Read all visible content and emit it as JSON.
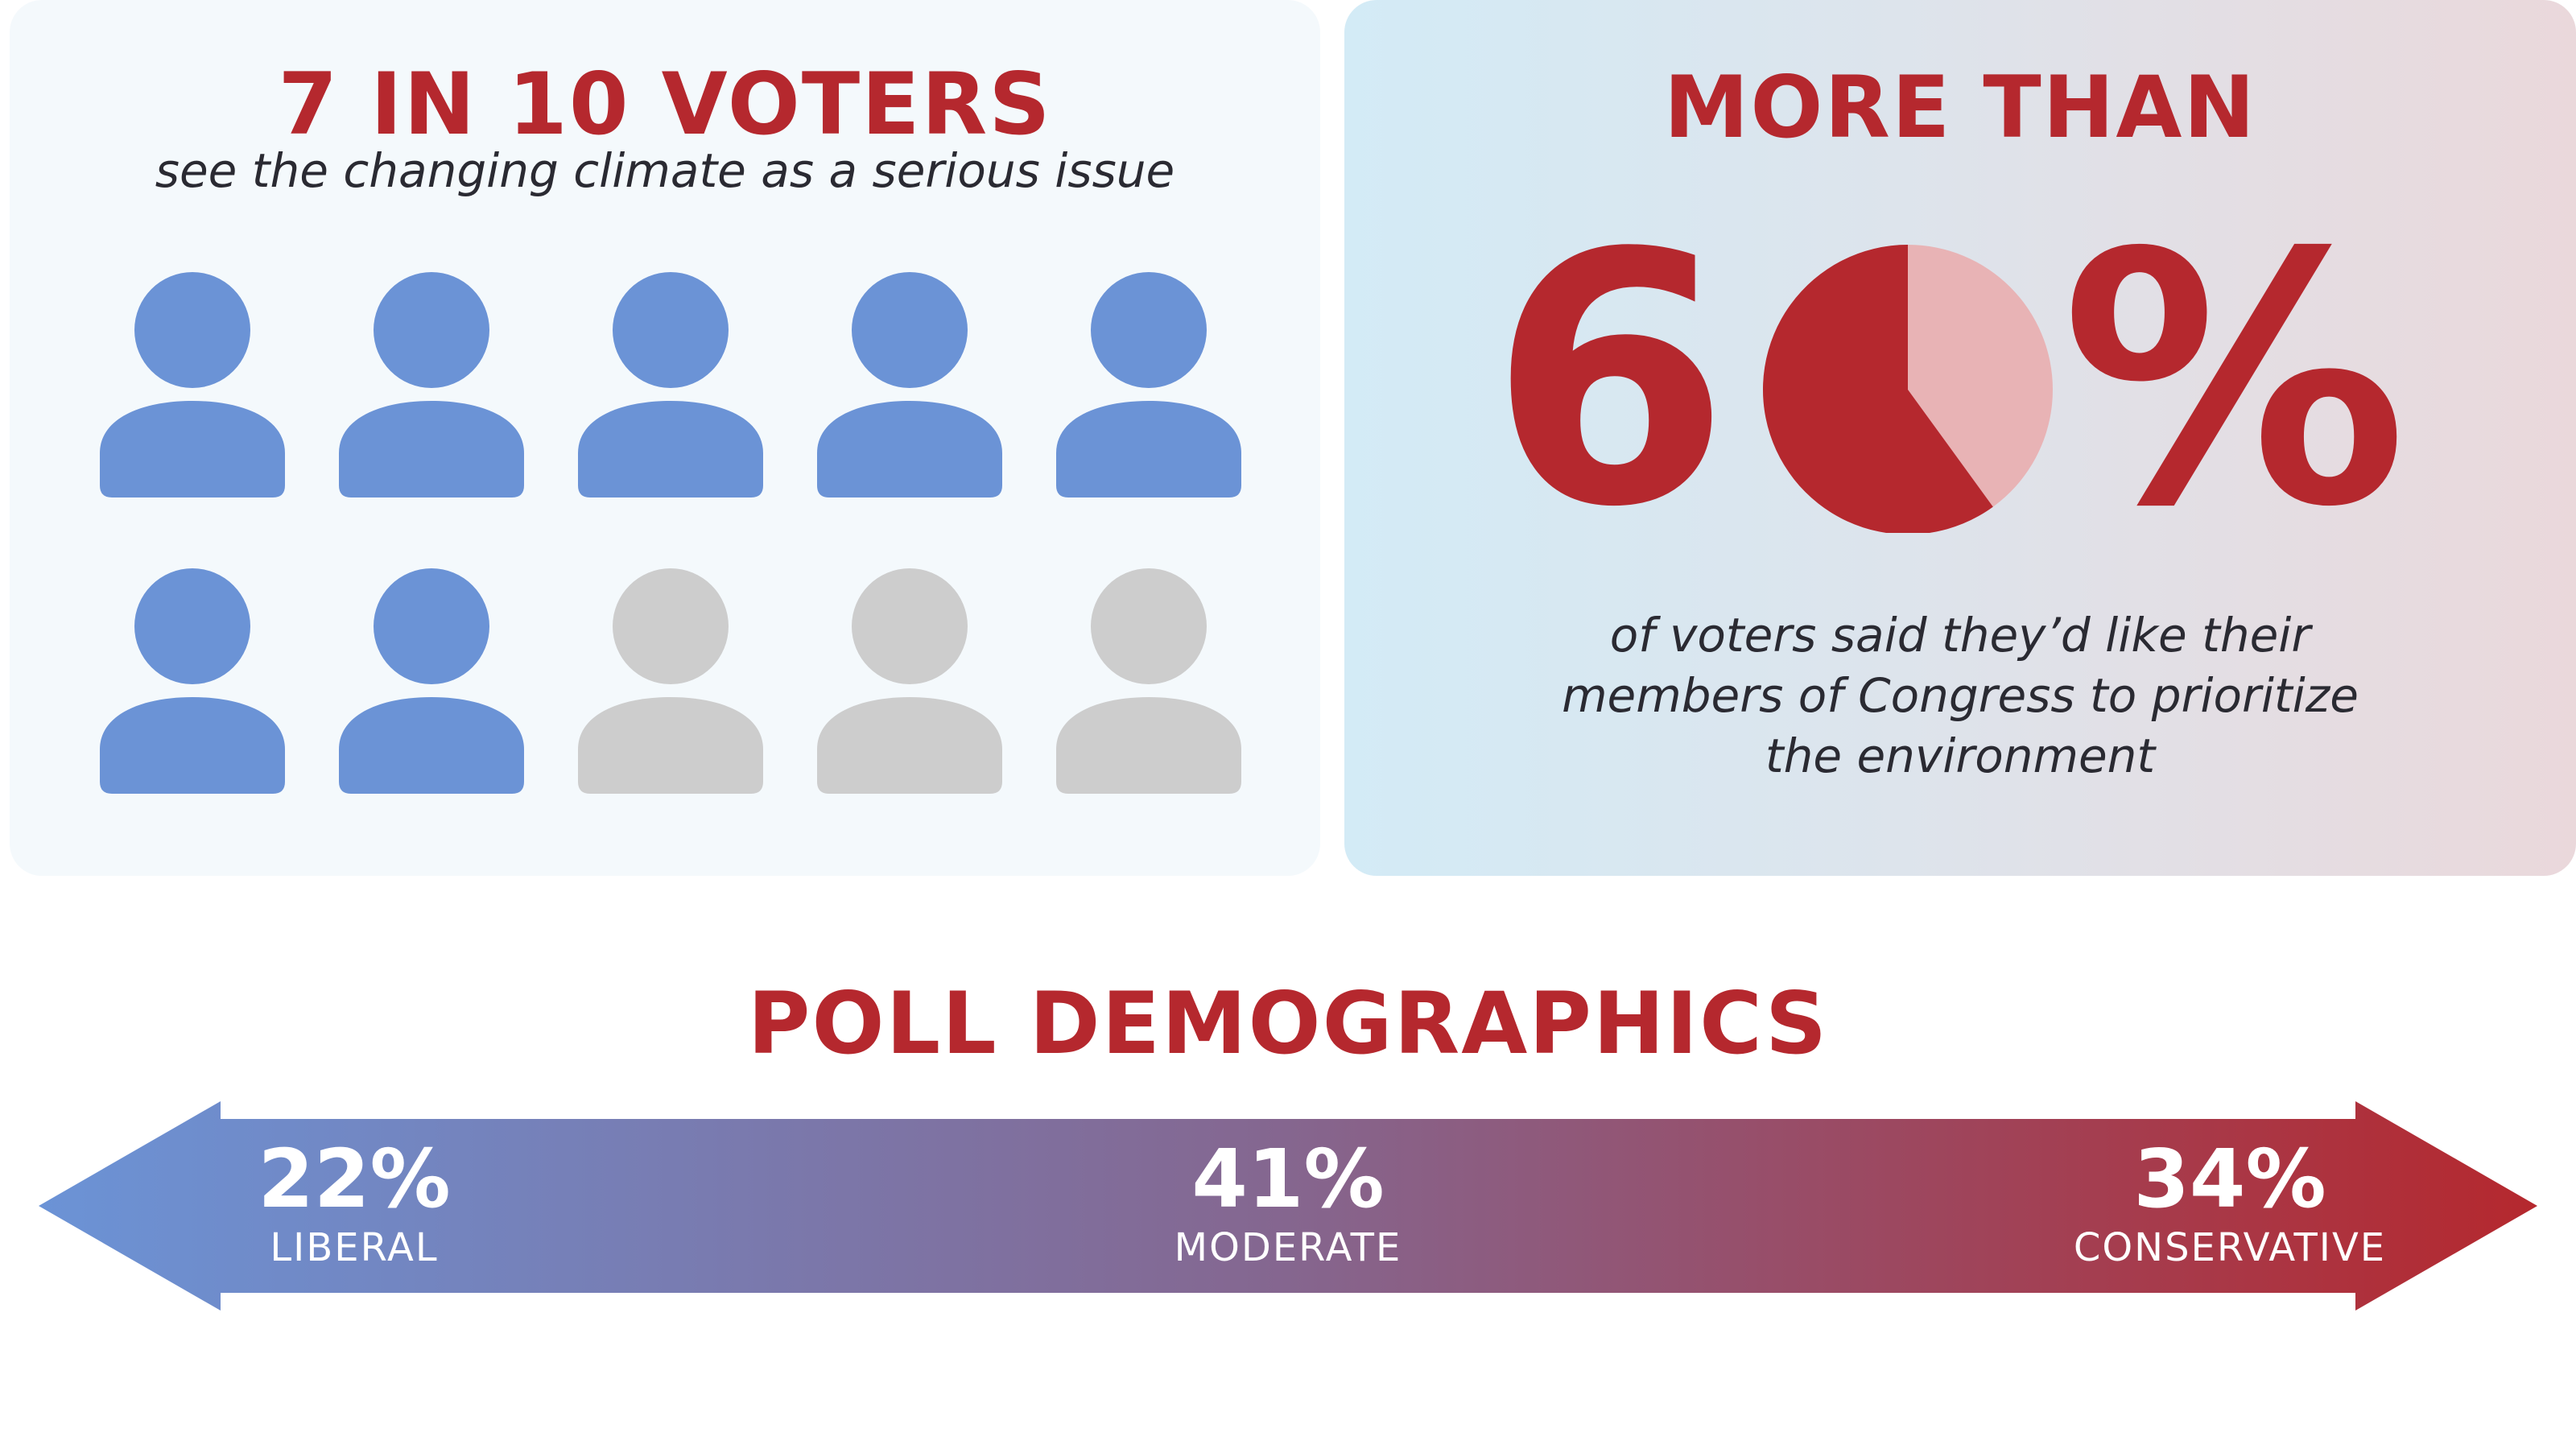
{
  "left_panel": {
    "title": "7 IN 10 VOTERS",
    "subtitle": "see the changing climate as a serious issue",
    "icon_grid": {
      "total": 10,
      "highlighted": 7,
      "colors": {
        "highlighted": "#6b93d6",
        "other": "#cdcdcd"
      }
    }
  },
  "right_panel": {
    "title": "MORE THAN",
    "stat_digit": "6",
    "stat_percent_sign": "%",
    "stat_value_percent": 60,
    "description_lines": [
      "of voters said they’d like their",
      "members of Congress to prioritize",
      "the environment"
    ],
    "colors": {
      "stat": "#b5282e",
      "pie_remainder": "#e8b3b5"
    }
  },
  "demographics": {
    "title": "POLL DEMOGRAPHICS",
    "colors": {
      "left": "#6b93d6",
      "middle": "#85668f",
      "right": "#b5282e"
    }
  },
  "chart_data": [
    {
      "type": "pictogram",
      "title": "7 IN 10 VOTERS",
      "subtitle": "see the changing climate as a serious issue",
      "total": 10,
      "value": 7
    },
    {
      "type": "pie",
      "title": "MORE THAN",
      "values": [
        60,
        40
      ],
      "labels": [
        "60%",
        ""
      ]
    },
    {
      "type": "bar",
      "title": "POLL DEMOGRAPHICS",
      "categories": [
        "LIBERAL",
        "MODERATE",
        "CONSERVATIVE"
      ],
      "values": [
        22,
        41,
        34
      ],
      "labels": [
        "22%",
        "41%",
        "34%"
      ]
    }
  ]
}
